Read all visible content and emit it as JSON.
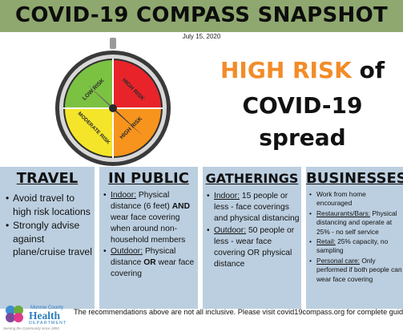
{
  "title": "COVID-19 COMPASS SNAPSHOT",
  "date": "July 15, 2020",
  "compass": {
    "segments": [
      {
        "label": "LOW RISK",
        "color": "#7cc242"
      },
      {
        "label": "HIGH RISK",
        "color": "#e8242a"
      },
      {
        "label": "HIGH RISK",
        "color": "#f7941d"
      },
      {
        "label": "MODERATE RISK",
        "color": "#f5e52a"
      }
    ],
    "needle_points_to": "HIGH RISK"
  },
  "headline": {
    "risk": "HIGH RISK",
    "of": " of",
    "line2": "COVID-19",
    "line3": "spread",
    "risk_color": "#f28c28"
  },
  "columns": {
    "travel": {
      "heading": "TRAVEL",
      "items": [
        "Avoid travel to high risk locations",
        "Strongly advise against plane/cruise travel"
      ]
    },
    "public": {
      "heading": "IN PUBLIC",
      "items": [
        {
          "label": "Indoor:",
          "t1": " Physical distance (6 feet) ",
          "b": "AND",
          "t2": " wear face covering when around non-household members"
        },
        {
          "label": "Outdoor:",
          "t1": " Physical distance ",
          "b": "OR",
          "t2": " wear face covering"
        }
      ]
    },
    "gatherings": {
      "heading": "GATHERINGS",
      "items": [
        {
          "label": "Indoor:",
          "text": " 15 people or less - face coverings and physical distancing"
        },
        {
          "label": "Outdoor:",
          "text": " 50 people or less - wear face covering OR physical distance"
        }
      ]
    },
    "businesses": {
      "heading": "BUSINESSES",
      "items": [
        {
          "label": "",
          "text": "Work from home encouraged"
        },
        {
          "label": "Restaurants/Bars:",
          "text": " Physical distancing and operate at 25% - no self service"
        },
        {
          "label": "Retail:",
          "text": " 25% capacity, no sampling"
        },
        {
          "label": "Personal care:",
          "text": " Only performed if both people can wear face covering"
        }
      ]
    }
  },
  "logo": {
    "county": "Monroe County",
    "name": "Health",
    "dept": "DEPARTMENT",
    "tagline": "Serving the Community since 1893"
  },
  "footer": "The recommendations above are not all inclusive.  Please visit covid19compass.org for complete guidance.",
  "colors": {
    "banner": "#8fa86f",
    "column_bg": "#bccfe0",
    "accent_orange": "#f28c28"
  }
}
